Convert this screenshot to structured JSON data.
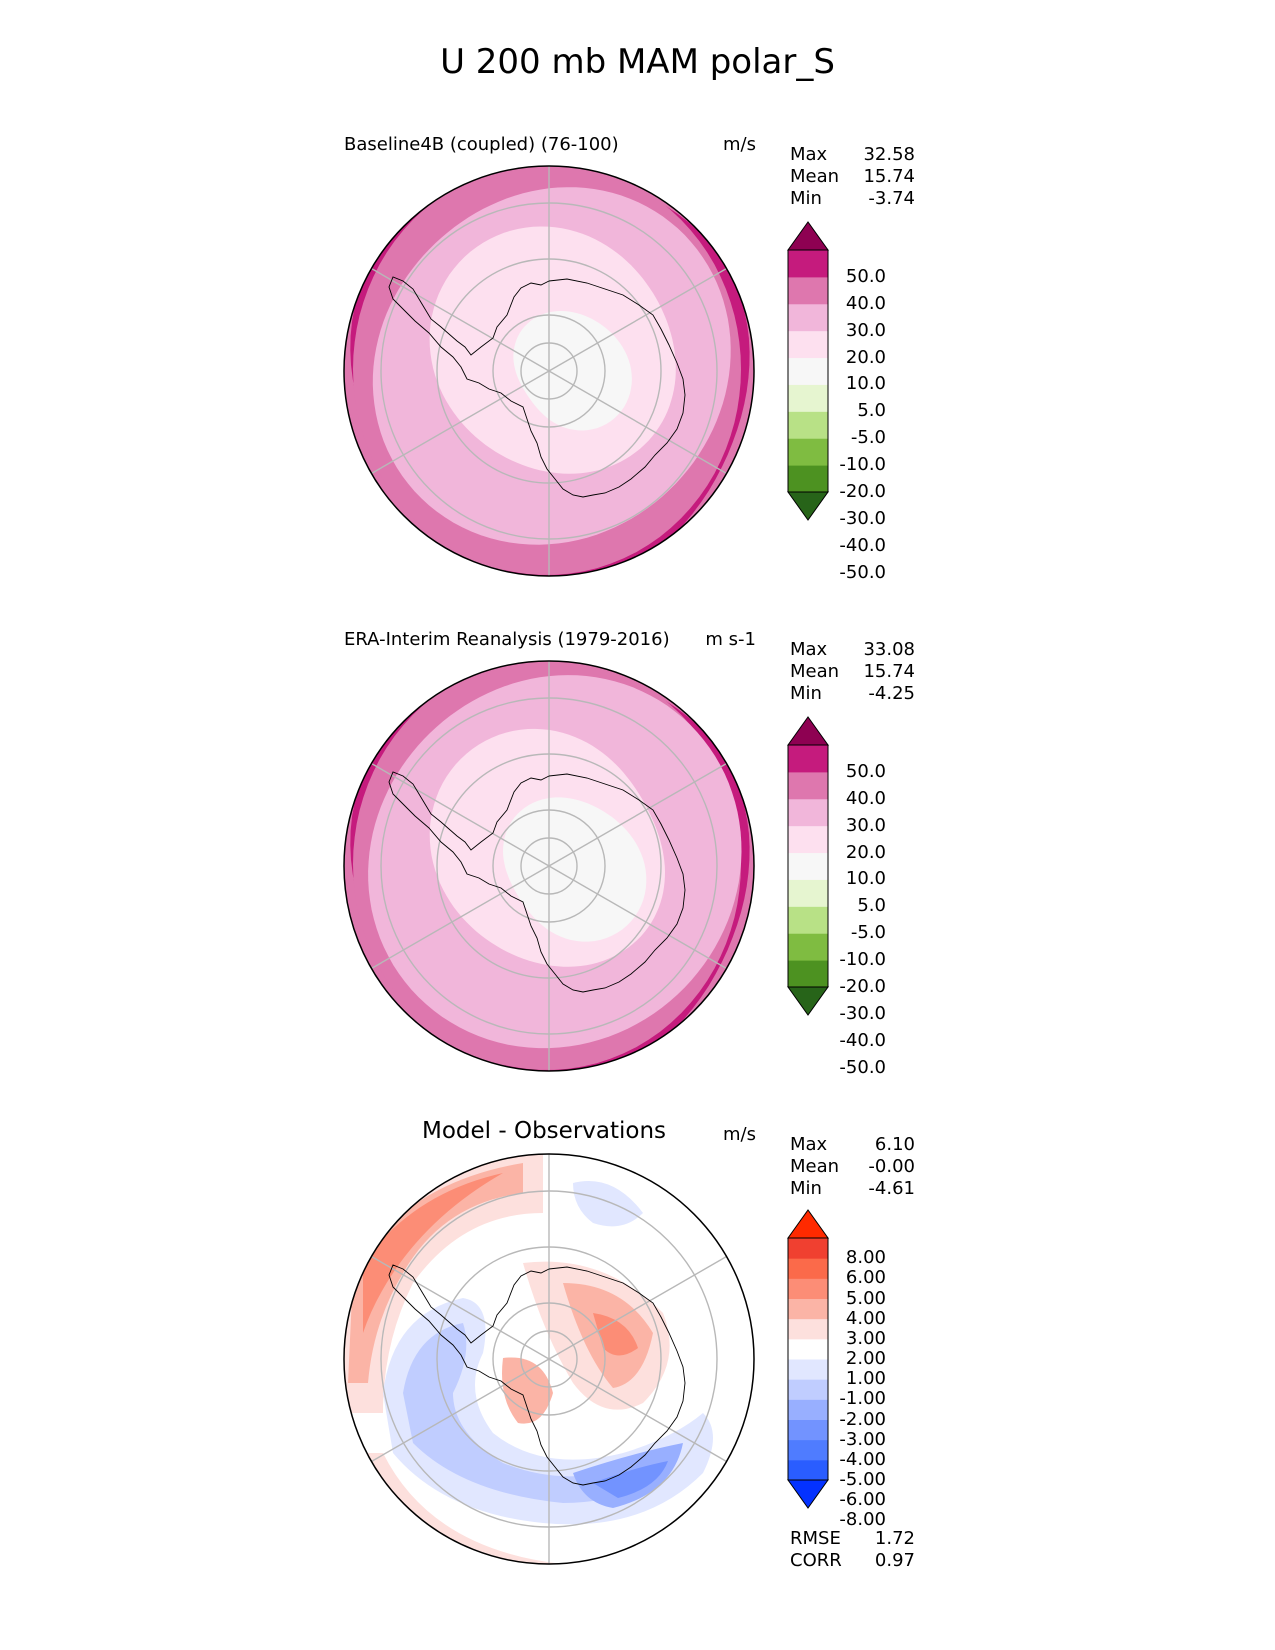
{
  "title": "U 200 mb MAM polar_S",
  "colors": {
    "pink_levels": [
      "#276419",
      "#4d9221",
      "#7fbc41",
      "#b8e186",
      "#e6f5d0",
      "#f7f7f7",
      "#fde0ef",
      "#f1b6da",
      "#de77ae",
      "#c51b7d",
      "#8e0152"
    ],
    "diff_levels": [
      "#0432ff",
      "#2a5dff",
      "#4f7cff",
      "#7293ff",
      "#98afff",
      "#c0cdff",
      "#e1e7ff",
      "#ffffff",
      "#fde0dd",
      "#fbb4a6",
      "#fc8d76",
      "#fb6a4a",
      "#f04030",
      "#ff2a00"
    ]
  },
  "chart_data": [
    {
      "type": "heatmap",
      "projection": "south-polar-stereographic",
      "title": "Baseline4B (coupled) (76-100)",
      "units": "m/s",
      "stats": [
        {
          "label": "Max",
          "value": "32.58"
        },
        {
          "label": "Mean",
          "value": "15.74"
        },
        {
          "label": "Min",
          "value": "-3.74"
        }
      ],
      "colorbar_levels": [
        "50.0",
        "40.0",
        "30.0",
        "20.0",
        "10.0",
        "5.0",
        "-5.0",
        "-10.0",
        "-20.0",
        "-30.0",
        "-40.0",
        "-50.0"
      ],
      "field_bands": [
        {
          "range": "30 to 40",
          "color_index": 9,
          "region": "outer rim east"
        },
        {
          "range": "20 to 30",
          "color_index": 8,
          "region": "outer ring"
        },
        {
          "range": "10 to 20",
          "color_index": 7,
          "region": "middle ring"
        },
        {
          "range": "5 to 10",
          "color_index": 6,
          "region": "inner ring"
        },
        {
          "range": "-5 to 5",
          "color_index": 5,
          "region": "pole"
        }
      ]
    },
    {
      "type": "heatmap",
      "projection": "south-polar-stereographic",
      "title": "ERA-Interim Reanalysis (1979-2016)",
      "units": "m s-1",
      "stats": [
        {
          "label": "Max",
          "value": "33.08"
        },
        {
          "label": "Mean",
          "value": "15.74"
        },
        {
          "label": "Min",
          "value": "-4.25"
        }
      ],
      "colorbar_levels": [
        "50.0",
        "40.0",
        "30.0",
        "20.0",
        "10.0",
        "5.0",
        "-5.0",
        "-10.0",
        "-20.0",
        "-30.0",
        "-40.0",
        "-50.0"
      ],
      "field_bands": [
        {
          "range": "30 to 40",
          "color_index": 9,
          "region": "outer rim east"
        },
        {
          "range": "20 to 30",
          "color_index": 8,
          "region": "outer ring"
        },
        {
          "range": "10 to 20",
          "color_index": 7,
          "region": "middle ring"
        },
        {
          "range": "5 to 10",
          "color_index": 6,
          "region": "inner ring"
        },
        {
          "range": "-5 to 5",
          "color_index": 5,
          "region": "pole"
        }
      ]
    },
    {
      "type": "heatmap",
      "projection": "south-polar-stereographic",
      "title": "Model - Observations",
      "units": "m/s",
      "stats": [
        {
          "label": "Max",
          "value": "6.10"
        },
        {
          "label": "Mean",
          "value": "-0.00"
        },
        {
          "label": "Min",
          "value": "-4.61"
        }
      ],
      "colorbar_levels": [
        "8.00",
        "6.00",
        "5.00",
        "4.00",
        "3.00",
        "2.00",
        "1.00",
        "-1.00",
        "-2.00",
        "-3.00",
        "-4.00",
        "-5.00",
        "-6.00",
        "-8.00"
      ],
      "metrics": [
        {
          "label": "RMSE",
          "value": "1.72"
        },
        {
          "label": "CORR",
          "value": "0.97"
        }
      ]
    }
  ]
}
